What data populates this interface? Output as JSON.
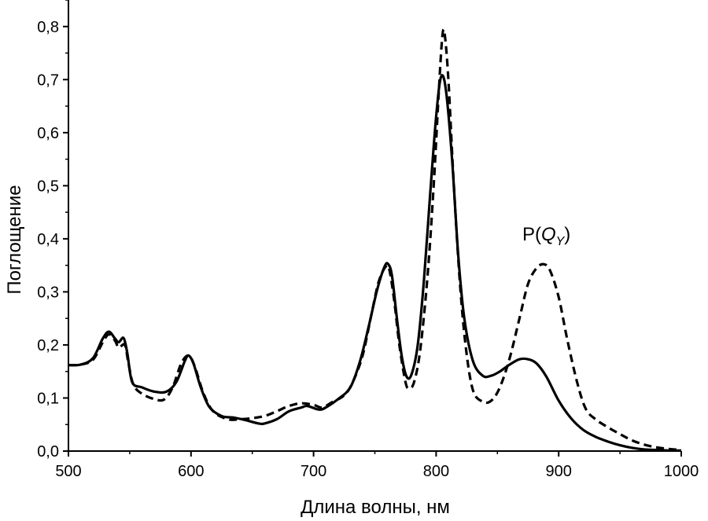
{
  "chart_data": {
    "type": "line",
    "xlabel": "Длина волны, нм",
    "ylabel": "Поглощение",
    "xlim": [
      500,
      1000
    ],
    "ylim": [
      0,
      0.85
    ],
    "x_ticks": [
      500,
      600,
      700,
      800,
      900,
      1000
    ],
    "x_tick_labels": [
      "500",
      "600",
      "700",
      "800",
      "900",
      "1000"
    ],
    "y_ticks": [
      0,
      0.1,
      0.2,
      0.3,
      0.4,
      0.5,
      0.6,
      0.7,
      0.8
    ],
    "y_tick_labels": [
      "0,0",
      "0,1",
      "0,2",
      "0,3",
      "0,4",
      "0,5",
      "0,6",
      "0,7",
      "0,8"
    ],
    "grid": false,
    "annotation": {
      "base": "P(",
      "italic": "Q",
      "sub": "Y",
      "close": ")",
      "x": 890,
      "y": 0.4
    },
    "series": [
      {
        "style": "solid",
        "color": "#000000",
        "points": [
          [
            500,
            0.162
          ],
          [
            510,
            0.163
          ],
          [
            520,
            0.175
          ],
          [
            528,
            0.212
          ],
          [
            533,
            0.225
          ],
          [
            538,
            0.212
          ],
          [
            541,
            0.205
          ],
          [
            545,
            0.213
          ],
          [
            548,
            0.185
          ],
          [
            552,
            0.13
          ],
          [
            560,
            0.12
          ],
          [
            570,
            0.112
          ],
          [
            580,
            0.112
          ],
          [
            588,
            0.13
          ],
          [
            595,
            0.17
          ],
          [
            598,
            0.18
          ],
          [
            602,
            0.165
          ],
          [
            608,
            0.12
          ],
          [
            615,
            0.083
          ],
          [
            625,
            0.066
          ],
          [
            635,
            0.063
          ],
          [
            645,
            0.058
          ],
          [
            655,
            0.052
          ],
          [
            660,
            0.052
          ],
          [
            670,
            0.06
          ],
          [
            680,
            0.075
          ],
          [
            690,
            0.082
          ],
          [
            695,
            0.085
          ],
          [
            705,
            0.078
          ],
          [
            712,
            0.085
          ],
          [
            720,
            0.098
          ],
          [
            730,
            0.12
          ],
          [
            738,
            0.17
          ],
          [
            745,
            0.235
          ],
          [
            752,
            0.305
          ],
          [
            758,
            0.348
          ],
          [
            761,
            0.352
          ],
          [
            764,
            0.33
          ],
          [
            768,
            0.25
          ],
          [
            772,
            0.178
          ],
          [
            776,
            0.14
          ],
          [
            780,
            0.145
          ],
          [
            785,
            0.2
          ],
          [
            790,
            0.32
          ],
          [
            795,
            0.48
          ],
          [
            800,
            0.63
          ],
          [
            804,
            0.705
          ],
          [
            808,
            0.68
          ],
          [
            813,
            0.55
          ],
          [
            818,
            0.37
          ],
          [
            823,
            0.25
          ],
          [
            830,
            0.17
          ],
          [
            838,
            0.142
          ],
          [
            845,
            0.142
          ],
          [
            852,
            0.15
          ],
          [
            860,
            0.163
          ],
          [
            868,
            0.173
          ],
          [
            875,
            0.173
          ],
          [
            882,
            0.165
          ],
          [
            890,
            0.14
          ],
          [
            900,
            0.095
          ],
          [
            910,
            0.062
          ],
          [
            920,
            0.04
          ],
          [
            930,
            0.027
          ],
          [
            940,
            0.018
          ],
          [
            950,
            0.011
          ],
          [
            960,
            0.006
          ],
          [
            970,
            0.003
          ],
          [
            980,
            0.002
          ],
          [
            990,
            0.001
          ],
          [
            1000,
            0.001
          ]
        ]
      },
      {
        "style": "dashed",
        "color": "#000000",
        "points": [
          [
            500,
            0.162
          ],
          [
            510,
            0.163
          ],
          [
            520,
            0.172
          ],
          [
            528,
            0.205
          ],
          [
            533,
            0.22
          ],
          [
            538,
            0.208
          ],
          [
            541,
            0.195
          ],
          [
            546,
            0.2
          ],
          [
            549,
            0.165
          ],
          [
            553,
            0.125
          ],
          [
            560,
            0.108
          ],
          [
            570,
            0.098
          ],
          [
            578,
            0.097
          ],
          [
            585,
            0.12
          ],
          [
            592,
            0.165
          ],
          [
            598,
            0.18
          ],
          [
            603,
            0.16
          ],
          [
            610,
            0.11
          ],
          [
            618,
            0.075
          ],
          [
            630,
            0.06
          ],
          [
            640,
            0.06
          ],
          [
            650,
            0.062
          ],
          [
            660,
            0.066
          ],
          [
            670,
            0.075
          ],
          [
            680,
            0.085
          ],
          [
            690,
            0.09
          ],
          [
            700,
            0.087
          ],
          [
            707,
            0.082
          ],
          [
            715,
            0.092
          ],
          [
            725,
            0.105
          ],
          [
            732,
            0.13
          ],
          [
            740,
            0.18
          ],
          [
            747,
            0.255
          ],
          [
            753,
            0.318
          ],
          [
            759,
            0.348
          ],
          [
            762,
            0.34
          ],
          [
            766,
            0.28
          ],
          [
            770,
            0.2
          ],
          [
            775,
            0.13
          ],
          [
            778,
            0.118
          ],
          [
            782,
            0.13
          ],
          [
            787,
            0.19
          ],
          [
            793,
            0.33
          ],
          [
            798,
            0.5
          ],
          [
            802,
            0.67
          ],
          [
            805,
            0.78
          ],
          [
            807,
            0.785
          ],
          [
            810,
            0.7
          ],
          [
            814,
            0.52
          ],
          [
            819,
            0.33
          ],
          [
            824,
            0.2
          ],
          [
            830,
            0.115
          ],
          [
            838,
            0.093
          ],
          [
            845,
            0.095
          ],
          [
            852,
            0.12
          ],
          [
            860,
            0.175
          ],
          [
            868,
            0.25
          ],
          [
            875,
            0.315
          ],
          [
            882,
            0.345
          ],
          [
            888,
            0.352
          ],
          [
            893,
            0.34
          ],
          [
            900,
            0.29
          ],
          [
            907,
            0.21
          ],
          [
            915,
            0.13
          ],
          [
            922,
            0.08
          ],
          [
            930,
            0.06
          ],
          [
            940,
            0.045
          ],
          [
            950,
            0.032
          ],
          [
            960,
            0.02
          ],
          [
            970,
            0.012
          ],
          [
            980,
            0.007
          ],
          [
            990,
            0.004
          ],
          [
            1000,
            0.002
          ]
        ]
      }
    ]
  }
}
